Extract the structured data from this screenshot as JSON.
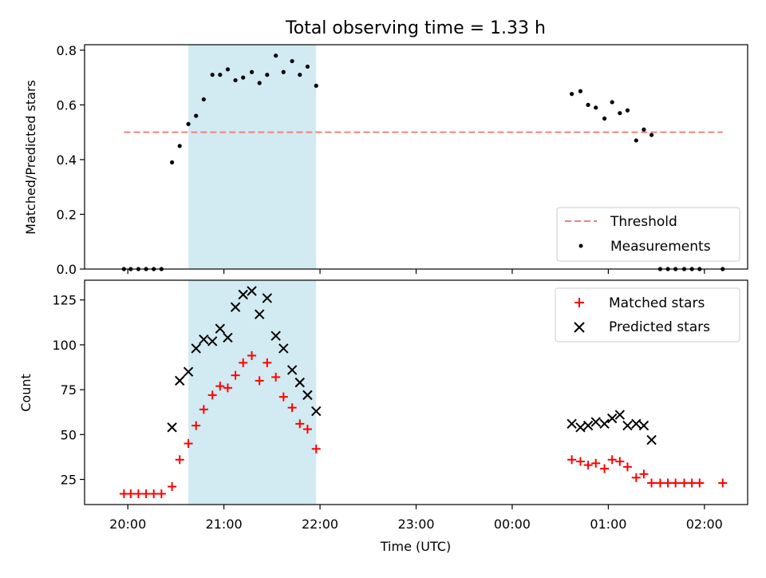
{
  "chart_data": {
    "title": "Total observing time = 1.33 h",
    "xlabel": "Time (UTC)",
    "x_ticks": [
      "20:00",
      "21:00",
      "22:00",
      "23:00",
      "00:00",
      "01:00",
      "02:00"
    ],
    "highlight_span": {
      "x_start": 20.63,
      "x_end": 21.96,
      "color": "#add8e6"
    },
    "panels": [
      {
        "type": "scatter",
        "ylabel": "Matched/Predicted stars",
        "ylim": [
          0,
          0.82
        ],
        "y_ticks": [
          0.0,
          0.2,
          0.4,
          0.6,
          0.8
        ],
        "y_tick_labels": [
          "0.0",
          "0.2",
          "0.4",
          "0.6",
          "0.8"
        ],
        "legend_position": "bottom-right",
        "threshold": {
          "name": "Threshold",
          "y": 0.5,
          "x_start": 19.96,
          "x_end": 26.19,
          "color": "#f08080"
        },
        "series": [
          {
            "name": "Measurements",
            "marker": "dot",
            "color": "#000000",
            "points": [
              [
                19.96,
                0.0
              ],
              [
                20.03,
                0.0
              ],
              [
                20.11,
                0.0
              ],
              [
                20.19,
                0.0
              ],
              [
                20.27,
                0.0
              ],
              [
                20.35,
                0.0
              ],
              [
                20.46,
                0.39
              ],
              [
                20.54,
                0.45
              ],
              [
                20.63,
                0.53
              ],
              [
                20.71,
                0.56
              ],
              [
                20.79,
                0.62
              ],
              [
                20.88,
                0.71
              ],
              [
                20.96,
                0.71
              ],
              [
                21.04,
                0.73
              ],
              [
                21.12,
                0.69
              ],
              [
                21.2,
                0.7
              ],
              [
                21.29,
                0.72
              ],
              [
                21.37,
                0.68
              ],
              [
                21.45,
                0.71
              ],
              [
                21.54,
                0.78
              ],
              [
                21.62,
                0.72
              ],
              [
                21.71,
                0.76
              ],
              [
                21.79,
                0.71
              ],
              [
                21.87,
                0.74
              ],
              [
                21.96,
                0.67
              ],
              [
                24.62,
                0.64
              ],
              [
                24.71,
                0.65
              ],
              [
                24.79,
                0.6
              ],
              [
                24.87,
                0.59
              ],
              [
                24.96,
                0.55
              ],
              [
                25.04,
                0.61
              ],
              [
                25.12,
                0.57
              ],
              [
                25.2,
                0.58
              ],
              [
                25.29,
                0.47
              ],
              [
                25.37,
                0.51
              ],
              [
                25.45,
                0.49
              ],
              [
                25.54,
                0.0
              ],
              [
                25.62,
                0.0
              ],
              [
                25.7,
                0.0
              ],
              [
                25.79,
                0.0
              ],
              [
                25.87,
                0.0
              ],
              [
                25.95,
                0.0
              ],
              [
                26.19,
                0.0
              ]
            ]
          }
        ]
      },
      {
        "type": "scatter",
        "ylabel": "Count",
        "ylim": [
          11,
          136
        ],
        "y_ticks": [
          25,
          50,
          75,
          100,
          125
        ],
        "y_tick_labels": [
          "25",
          "50",
          "75",
          "100",
          "125"
        ],
        "legend_position": "top-right",
        "series": [
          {
            "name": "Matched stars",
            "marker": "plus",
            "color": "#ff0000",
            "points": [
              [
                19.96,
                17
              ],
              [
                20.03,
                17
              ],
              [
                20.11,
                17
              ],
              [
                20.19,
                17
              ],
              [
                20.27,
                17
              ],
              [
                20.35,
                17
              ],
              [
                20.46,
                21
              ],
              [
                20.54,
                36
              ],
              [
                20.63,
                45
              ],
              [
                20.71,
                55
              ],
              [
                20.79,
                64
              ],
              [
                20.88,
                72
              ],
              [
                20.96,
                77
              ],
              [
                21.04,
                76
              ],
              [
                21.12,
                83
              ],
              [
                21.2,
                90
              ],
              [
                21.29,
                94
              ],
              [
                21.37,
                80
              ],
              [
                21.45,
                90
              ],
              [
                21.54,
                82
              ],
              [
                21.62,
                71
              ],
              [
                21.71,
                65
              ],
              [
                21.79,
                56
              ],
              [
                21.87,
                53
              ],
              [
                21.96,
                42
              ],
              [
                24.62,
                36
              ],
              [
                24.71,
                35
              ],
              [
                24.79,
                33
              ],
              [
                24.87,
                34
              ],
              [
                24.96,
                31
              ],
              [
                25.04,
                36
              ],
              [
                25.12,
                35
              ],
              [
                25.2,
                32
              ],
              [
                25.29,
                26
              ],
              [
                25.37,
                28
              ],
              [
                25.45,
                23
              ],
              [
                25.54,
                23
              ],
              [
                25.62,
                23
              ],
              [
                25.7,
                23
              ],
              [
                25.79,
                23
              ],
              [
                25.87,
                23
              ],
              [
                25.95,
                23
              ],
              [
                26.19,
                23
              ]
            ]
          },
          {
            "name": "Predicted stars",
            "marker": "x",
            "color": "#000000",
            "points": [
              [
                20.46,
                54
              ],
              [
                20.54,
                80
              ],
              [
                20.63,
                85
              ],
              [
                20.71,
                98
              ],
              [
                20.79,
                103
              ],
              [
                20.88,
                102
              ],
              [
                20.96,
                109
              ],
              [
                21.04,
                104
              ],
              [
                21.12,
                121
              ],
              [
                21.2,
                128
              ],
              [
                21.29,
                130
              ],
              [
                21.37,
                117
              ],
              [
                21.45,
                126
              ],
              [
                21.54,
                105
              ],
              [
                21.62,
                98
              ],
              [
                21.71,
                86
              ],
              [
                21.79,
                79
              ],
              [
                21.87,
                72
              ],
              [
                21.96,
                63
              ],
              [
                24.62,
                56
              ],
              [
                24.71,
                54
              ],
              [
                24.79,
                55
              ],
              [
                24.87,
                57
              ],
              [
                24.96,
                56
              ],
              [
                25.04,
                59
              ],
              [
                25.12,
                61
              ],
              [
                25.2,
                55
              ],
              [
                25.29,
                56
              ],
              [
                25.37,
                55
              ],
              [
                25.45,
                47
              ]
            ]
          }
        ]
      }
    ]
  }
}
